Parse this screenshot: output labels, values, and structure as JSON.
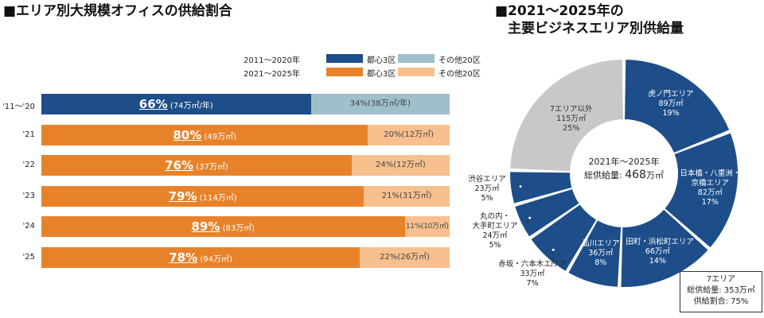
{
  "left": {
    "title": "■エリア別大規模オフィスの供給割合",
    "legend": {
      "row1_label": "2011～2020年",
      "row2_label": "2021～2025年",
      "core_label": "都心3区",
      "other_label": "その他20区"
    }
  },
  "right": {
    "title_line1": "■2021～2025年の",
    "title_line2": "主要ビジネスエリア別供給量",
    "center_line1": "2021年～2025年",
    "center_line2_prefix": "総供給量: ",
    "center_line2_value": "468",
    "center_line2_unit": "万㎡",
    "box_line1": "7エリア",
    "box_line2": "総供給量: 353万㎡",
    "box_line3": "供給割合: 75%"
  },
  "colors": {
    "navy": "#1d4e89",
    "sky": "#9fbfca",
    "orange": "#e8822a",
    "peach": "#f8c08f",
    "gray": "#c8c8c8"
  },
  "chart_data": [
    {
      "type": "bar",
      "orientation": "horizontal-stacked-100",
      "title": "エリア別大規模オフィスの供給割合",
      "categories": [
        "'11～'20",
        "'21",
        "'22",
        "'23",
        "'24",
        "'25"
      ],
      "series": [
        {
          "name": "都心3区",
          "values": [
            66,
            80,
            76,
            79,
            89,
            78
          ],
          "labels": [
            "66%",
            "80%",
            "76%",
            "79%",
            "89%",
            "78%"
          ],
          "amount_labels": [
            "(74万㎡/年)",
            "(49万㎡)",
            "(37万㎡)",
            "(114万㎡)",
            "(83万㎡)",
            "(94万㎡)"
          ]
        },
        {
          "name": "その他20区",
          "values": [
            34,
            20,
            24,
            21,
            11,
            22
          ],
          "labels": [
            "34%",
            "20%",
            "24%",
            "21%",
            "11%",
            "22%"
          ],
          "amount_labels": [
            "(38万㎡/年)",
            "(12万㎡)",
            "(12万㎡)",
            "(31万㎡)",
            "(10万㎡)",
            "(26万㎡)"
          ]
        }
      ]
    },
    {
      "type": "pie",
      "style": "donut",
      "title": "2021～2025年の主要ビジネスエリア別供給量",
      "total": 468,
      "slices": [
        {
          "name": "虎ノ門エリア",
          "value": 89,
          "value_label": "89万㎡",
          "share": "19%",
          "color": "navy"
        },
        {
          "name": "日本橋・八重洲・京橋エリア",
          "value": 82,
          "value_label": "82万㎡",
          "share": "17%",
          "color": "navy"
        },
        {
          "name": "田町・浜松町エリア",
          "value": 66,
          "value_label": "66万㎡",
          "share": "14%",
          "color": "navy"
        },
        {
          "name": "品川エリア",
          "value": 36,
          "value_label": "36万㎡",
          "share": "8%",
          "color": "navy"
        },
        {
          "name": "赤坂・六本木エリア",
          "value": 33,
          "value_label": "33万㎡",
          "share": "7%",
          "color": "navy"
        },
        {
          "name": "丸の内・大手町エリア",
          "value": 24,
          "value_label": "24万㎡",
          "share": "5%",
          "color": "navy"
        },
        {
          "name": "渋谷エリア",
          "value": 23,
          "value_label": "23万㎡",
          "share": "5%",
          "color": "navy"
        },
        {
          "name": "7エリア以外",
          "value": 115,
          "value_label": "115万㎡",
          "share": "25%",
          "color": "gray"
        }
      ]
    }
  ]
}
